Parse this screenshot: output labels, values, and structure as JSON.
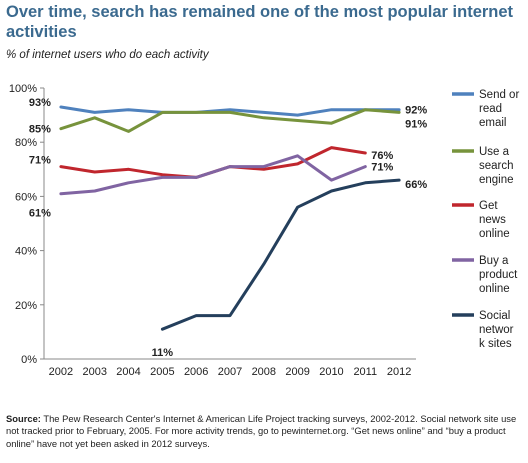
{
  "header": {
    "title": "Over time, search has remained one of the most popular internet activities",
    "subtitle": "% of internet users who do each activity"
  },
  "footer": {
    "source_label": "Source:",
    "source_text": " The Pew Research Center's Internet & American Life Project tracking surveys, 2002-2012. Social network site use not tracked prior to February, 2005. For more activity trends, go to pewinternet.org.  “Get news online” and “buy a product online” have not yet been asked in 2012 surveys."
  },
  "chart_data": {
    "type": "line",
    "x": [
      2002,
      2003,
      2004,
      2005,
      2006,
      2007,
      2008,
      2009,
      2010,
      2011,
      2012
    ],
    "ylim": [
      0,
      100
    ],
    "yticks": [
      "0%",
      "20%",
      "40%",
      "60%",
      "80%",
      "100%"
    ],
    "grid": false,
    "legend_position": "right",
    "series": [
      {
        "name": "Send or read email",
        "legend_lines": [
          "Send or",
          "read",
          "email"
        ],
        "color": "#4f81bd",
        "values": [
          93,
          91,
          92,
          91,
          91,
          92,
          91,
          90,
          92,
          92,
          92
        ]
      },
      {
        "name": "Use a search engine",
        "legend_lines": [
          "Use a",
          "search",
          "engine"
        ],
        "color": "#77933c",
        "values": [
          85,
          89,
          84,
          91,
          91,
          91,
          89,
          88,
          87,
          92,
          91
        ]
      },
      {
        "name": "Get news online",
        "legend_lines": [
          "Get",
          "news",
          "online"
        ],
        "color": "#c0262d",
        "values": [
          71,
          69,
          70,
          68,
          67,
          71,
          70,
          72,
          78,
          76,
          null
        ]
      },
      {
        "name": "Buy a product online",
        "legend_lines": [
          "Buy a",
          "product",
          "online"
        ],
        "color": "#8064a2",
        "values": [
          61,
          62,
          65,
          67,
          67,
          71,
          71,
          75,
          66,
          71,
          null
        ]
      },
      {
        "name": "Social network sites",
        "legend_lines": [
          "Social",
          "networ",
          "k sites"
        ],
        "color": "#243f5c",
        "values": [
          null,
          null,
          null,
          11,
          16,
          16,
          35,
          56,
          62,
          65,
          66
        ]
      }
    ],
    "annotations": [
      {
        "text": "93%",
        "series": 0,
        "x": 2002
      },
      {
        "text": "92%",
        "series": 0,
        "x": 2012
      },
      {
        "text": "85%",
        "series": 1,
        "x": 2002
      },
      {
        "text": "91%",
        "series": 1,
        "x": 2012
      },
      {
        "text": "71%",
        "series": 2,
        "x": 2002
      },
      {
        "text": "76%",
        "series": 2,
        "x": 2011
      },
      {
        "text": "61%",
        "series": 3,
        "x": 2002
      },
      {
        "text": "71%",
        "series": 3,
        "x": 2011
      },
      {
        "text": "11%",
        "series": 4,
        "x": 2005
      },
      {
        "text": "66%",
        "series": 4,
        "x": 2012
      }
    ]
  }
}
